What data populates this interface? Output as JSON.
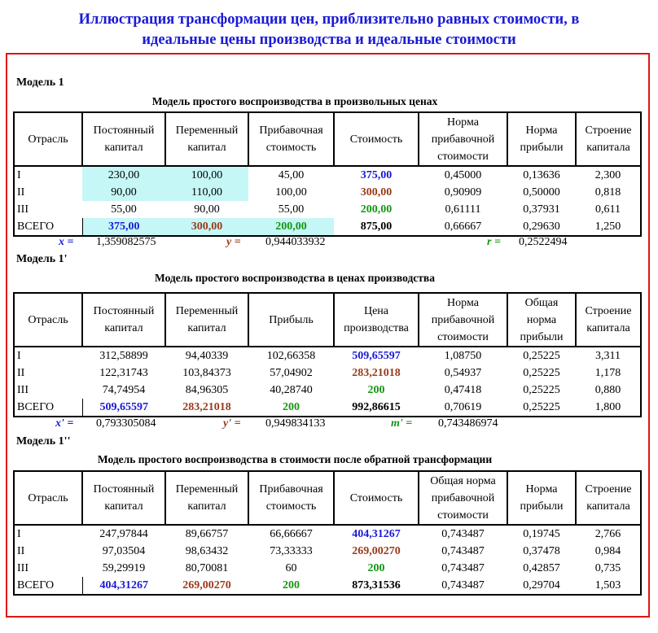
{
  "title": {
    "line1": "Иллюстрация трансформации цен, приблизительно равных стоимости, в",
    "line2": "идеальные цены производства и идеальные стоимости"
  },
  "models": [
    {
      "label": "Модель 1",
      "table_title": "Модель простого воспроизводства в произвольных ценах",
      "headers": [
        "Отрасль",
        "Постоянный капитал",
        "Переменный капитал",
        "Прибавочная стоимость",
        "Стоимость",
        "Норма прибавочной стоимости",
        "Норма прибыли",
        "Строение капитала"
      ],
      "rows": [
        [
          "I",
          "230,00",
          "100,00",
          "45,00",
          "375,00",
          "0,45000",
          "0,13636",
          "2,300"
        ],
        [
          "II",
          "90,00",
          "110,00",
          "100,00",
          "300,00",
          "0,90909",
          "0,50000",
          "0,818"
        ],
        [
          "III",
          "55,00",
          "90,00",
          "55,00",
          "200,00",
          "0,61111",
          "0,37931",
          "0,611"
        ],
        [
          "ВСЕГО",
          "375,00",
          "300,00",
          "200,00",
          "875,00",
          "0,66667",
          "0,29630",
          "1,250"
        ]
      ],
      "coefficients": [
        {
          "label": "x =",
          "value": "1,359082575"
        },
        {
          "label": "y =",
          "value": "0,944033932"
        },
        {
          "label": "r =",
          "value": "0,2522494"
        }
      ]
    },
    {
      "label": "Модель 1'",
      "table_title": "Модель простого воспроизводства в ценах производства",
      "headers": [
        "Отрасль",
        "Постоянный капитал",
        "Переменный капитал",
        "Прибыль",
        "Цена производства",
        "Норма прибавочной стоимости",
        "Общая норма прибыли",
        "Строение капитала"
      ],
      "rows": [
        [
          "I",
          "312,58899",
          "94,40339",
          "102,66358",
          "509,65597",
          "1,08750",
          "0,25225",
          "3,311"
        ],
        [
          "II",
          "122,31743",
          "103,84373",
          "57,04902",
          "283,21018",
          "0,54937",
          "0,25225",
          "1,178"
        ],
        [
          "III",
          "74,74954",
          "84,96305",
          "40,28740",
          "200",
          "0,47418",
          "0,25225",
          "0,880"
        ],
        [
          "ВСЕГО",
          "509,65597",
          "283,21018",
          "200",
          "992,86615",
          "0,70619",
          "0,25225",
          "1,800"
        ]
      ],
      "coefficients": [
        {
          "label": "x' =",
          "value": "0,793305084"
        },
        {
          "label": "y' =",
          "value": "0,949834133"
        },
        {
          "label": "m' =",
          "value": "0,743486974"
        }
      ]
    },
    {
      "label": "Модель 1''",
      "table_title": "Модель простого воспроизводства в стоимости после обратной трансформации",
      "headers": [
        "Отрасль",
        "Постоянный капитал",
        "Переменный капитал",
        "Прибавочная стоимость",
        "Стоимость",
        "Общая норма прибавочной стоимости",
        "Норма прибыли",
        "Строение капитала"
      ],
      "rows": [
        [
          "I",
          "247,97844",
          "89,66757",
          "66,66667",
          "404,31267",
          "0,743487",
          "0,19745",
          "2,766"
        ],
        [
          "II",
          "97,03504",
          "98,63432",
          "73,33333",
          "269,00270",
          "0,743487",
          "0,37478",
          "0,984"
        ],
        [
          "III",
          "59,29919",
          "80,70081",
          "60",
          "200",
          "0,743487",
          "0,42857",
          "0,735"
        ],
        [
          "ВСЕГО",
          "404,31267",
          "269,00270",
          "200",
          "873,31536",
          "0,743487",
          "0,29704",
          "1,503"
        ]
      ]
    }
  ],
  "colors": {
    "title_blue": "#1a1ad6",
    "frame_red": "#e11414",
    "highlight_cyan": "#c6f7f7",
    "value_blue": "#1a1ad6",
    "value_brown": "#9a3a1a",
    "value_green": "#149614"
  }
}
